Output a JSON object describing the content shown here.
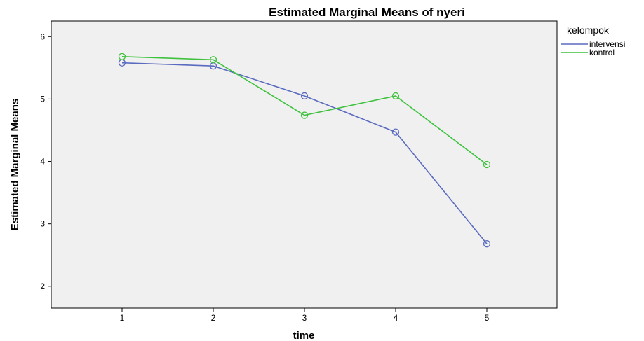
{
  "chart_data": {
    "type": "line",
    "title": "Estimated Marginal Means of nyeri",
    "xlabel": "time",
    "ylabel": "Estimated Marginal Means",
    "categories": [
      "1",
      "2",
      "3",
      "4",
      "5"
    ],
    "ylim": [
      1.65,
      6.25
    ],
    "yticks": [
      2,
      3,
      4,
      5,
      6
    ],
    "grid": false,
    "legend_title": "kelompok",
    "legend_position": "top-right",
    "series": [
      {
        "name": "intervensi",
        "color": "#5a6abf",
        "values": [
          5.58,
          5.53,
          5.05,
          4.47,
          2.68
        ]
      },
      {
        "name": "kontrol",
        "color": "#3ec23e",
        "values": [
          5.68,
          5.63,
          4.74,
          5.05,
          3.95
        ]
      }
    ]
  }
}
